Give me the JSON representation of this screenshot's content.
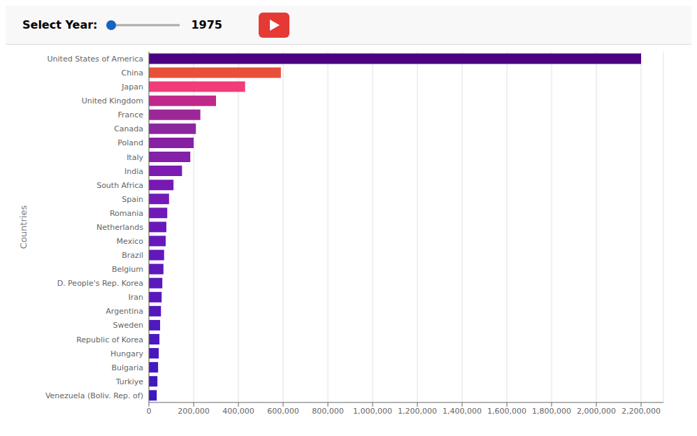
{
  "chart_data": {
    "type": "bar",
    "orientation": "horizontal",
    "annotations": [
      "Select Year:",
      "1975"
    ],
    "y_label": "Countries",
    "categories": [
      "United States of America",
      "China",
      "Japan",
      "United Kingdom",
      "France",
      "Canada",
      "Poland",
      "Italy",
      "India",
      "South Africa",
      "Spain",
      "Romania",
      "Netherlands",
      "Mexico",
      "Brazil",
      "Belgium",
      "D. People's Rep. Korea",
      "Iran",
      "Argentina",
      "Sweden",
      "Republic of Korea",
      "Hungary",
      "Bulgaria",
      "Turkiye",
      "Venezuela (Boliv. Rep. of)"
    ],
    "values": [
      2200000,
      590000,
      430000,
      300000,
      230000,
      210000,
      200000,
      185000,
      148000,
      110000,
      90000,
      82000,
      78000,
      75000,
      68000,
      65000,
      60000,
      57000,
      54000,
      50000,
      47000,
      44000,
      41000,
      38000,
      35000
    ],
    "colors": [
      "#4b0082",
      "#e8503a",
      "#f03c78",
      "#c0288c",
      "#9c2898",
      "#8b28a0",
      "#8820a4",
      "#8520a8",
      "#7c1cb0",
      "#7818b4",
      "#7418b6",
      "#7018b8",
      "#6c18b8",
      "#6818ba",
      "#6418ba",
      "#6018bc",
      "#5c18bc",
      "#5818bc",
      "#5418bc",
      "#5018be",
      "#4c18be",
      "#4818be",
      "#4418c0",
      "#4018c0",
      "#3c18c0"
    ],
    "xlim": [
      0,
      2300000
    ],
    "xticks": [
      0,
      {
        "value": 200000,
        "label": "200,000"
      },
      {
        "value": 400000,
        "label": "400,000"
      },
      {
        "value": 600000,
        "label": "600,000"
      },
      {
        "value": 800000,
        "label": "800,000"
      },
      {
        "value": 1000000,
        "label": "1,000,000"
      },
      {
        "value": 1200000,
        "label": "1,200,000"
      },
      {
        "value": 1400000,
        "label": "1,400,000"
      },
      {
        "value": 1600000,
        "label": "1,600,000"
      },
      {
        "value": 1800000,
        "label": "1,800,000"
      },
      {
        "value": 2000000,
        "label": "2,000,000"
      },
      {
        "value": 2200000,
        "label": "2,200,000"
      }
    ],
    "grid": true
  }
}
